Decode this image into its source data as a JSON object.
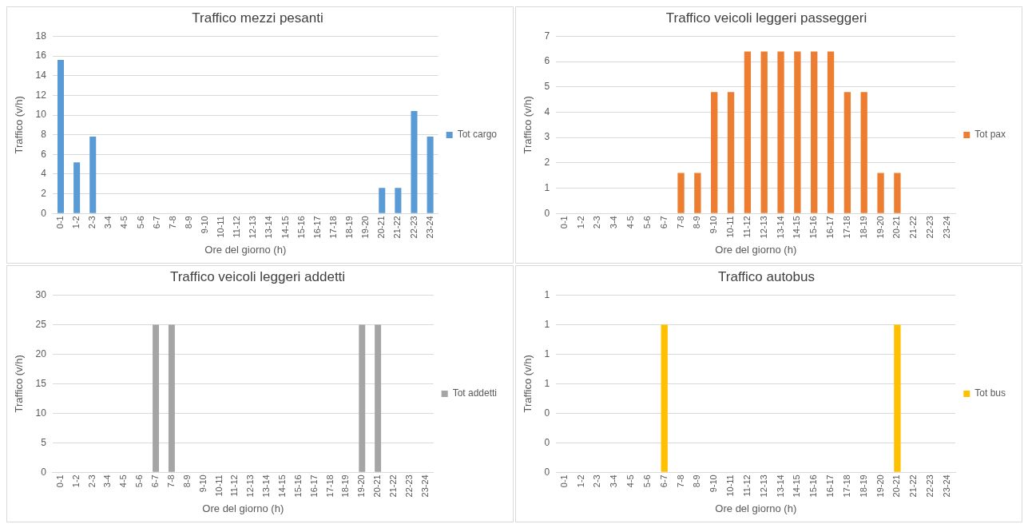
{
  "chart_data": [
    {
      "type": "bar",
      "title": "Traffico mezzi pesanti",
      "xlabel": "Ore del giorno (h)",
      "ylabel": "Traffico (v/h)",
      "categories": [
        "0-1",
        "1-2",
        "2-3",
        "3-4",
        "4-5",
        "5-6",
        "6-7",
        "7-8",
        "8-9",
        "9-10",
        "10-11",
        "11-12",
        "12-13",
        "13-14",
        "14-15",
        "15-16",
        "16-17",
        "17-18",
        "18-19",
        "19-20",
        "20-21",
        "21-22",
        "22-23",
        "23-24"
      ],
      "series": [
        {
          "name": "Tot cargo",
          "color": "#5b9bd5",
          "values": [
            15.6,
            5.2,
            7.8,
            0,
            0,
            0,
            0,
            0,
            0,
            0,
            0,
            0,
            0,
            0,
            0,
            0,
            0,
            0,
            0,
            0,
            2.6,
            2.6,
            10.4,
            7.8
          ]
        }
      ],
      "ylim": [
        0,
        18
      ],
      "yticks": [
        0,
        2,
        4,
        6,
        8,
        10,
        12,
        14,
        16,
        18
      ],
      "grid": "y",
      "legend": "right"
    },
    {
      "type": "bar",
      "title": "Traffico veicoli leggeri passeggeri",
      "xlabel": "Ore del giorno (h)",
      "ylabel": "Traffico (v/h)",
      "categories": [
        "0-1",
        "1-2",
        "2-3",
        "3-4",
        "4-5",
        "5-6",
        "6-7",
        "7-8",
        "8-9",
        "9-10",
        "10-11",
        "11-12",
        "12-13",
        "13-14",
        "14-15",
        "15-16",
        "16-17",
        "17-18",
        "18-19",
        "19-20",
        "20-21",
        "21-22",
        "22-23",
        "23-24"
      ],
      "series": [
        {
          "name": "Tot pax",
          "color": "#ed7d31",
          "values": [
            0,
            0,
            0,
            0,
            0,
            0,
            0,
            1.6,
            1.6,
            4.8,
            4.8,
            6.4,
            6.4,
            6.4,
            6.4,
            6.4,
            6.4,
            4.8,
            4.8,
            1.6,
            1.6,
            0,
            0,
            0
          ]
        }
      ],
      "ylim": [
        0,
        7
      ],
      "yticks": [
        0,
        1,
        2,
        3,
        4,
        5,
        6,
        7
      ],
      "grid": "y",
      "legend": "right"
    },
    {
      "type": "bar",
      "title": "Traffico veicoli leggeri addetti",
      "xlabel": "Ore del giorno (h)",
      "ylabel": "Traffico (v/h)",
      "categories": [
        "0-1",
        "1-2",
        "2-3",
        "3-4",
        "4-5",
        "5-6",
        "6-7",
        "7-8",
        "8-9",
        "9-10",
        "10-11",
        "11-12",
        "12-13",
        "13-14",
        "14-15",
        "15-16",
        "16-17",
        "17-18",
        "18-19",
        "19-20",
        "20-21",
        "21-22",
        "22-23",
        "23-24"
      ],
      "series": [
        {
          "name": "Tot addetti",
          "color": "#a5a5a5",
          "values": [
            0,
            0,
            0,
            0,
            0,
            0,
            25,
            25,
            0,
            0,
            0,
            0,
            0,
            0,
            0,
            0,
            0,
            0,
            0,
            25,
            25,
            0,
            0,
            0
          ]
        }
      ],
      "ylim": [
        0,
        30
      ],
      "yticks": [
        0,
        5,
        10,
        15,
        20,
        25,
        30
      ],
      "grid": "y",
      "legend": "right"
    },
    {
      "type": "bar",
      "title": "Traffico autobus",
      "xlabel": "Ore del giorno (h)",
      "ylabel": "Traffico (v/h)",
      "categories": [
        "0-1",
        "1-2",
        "2-3",
        "3-4",
        "4-5",
        "5-6",
        "6-7",
        "7-8",
        "8-9",
        "9-10",
        "10-11",
        "11-12",
        "12-13",
        "13-14",
        "14-15",
        "15-16",
        "16-17",
        "17-18",
        "18-19",
        "19-20",
        "20-21",
        "21-22",
        "22-23",
        "23-24"
      ],
      "series": [
        {
          "name": "Tot bus",
          "color": "#ffc000",
          "values": [
            0,
            0,
            0,
            0,
            0,
            0,
            1,
            0,
            0,
            0,
            0,
            0,
            0,
            0,
            0,
            0,
            0,
            0,
            0,
            0,
            1,
            0,
            0,
            0
          ]
        }
      ],
      "ylim": [
        0,
        1.2
      ],
      "yticks": [
        0,
        {
          "value": 0.2,
          "label": "0"
        },
        {
          "value": 0.4,
          "label": "0"
        },
        {
          "value": 0.6,
          "label": "1"
        },
        {
          "value": 0.8,
          "label": "1"
        },
        {
          "value": 1,
          "label": "1"
        },
        {
          "value": 1.2,
          "label": "1"
        }
      ],
      "grid": "y",
      "legend": "right"
    }
  ]
}
